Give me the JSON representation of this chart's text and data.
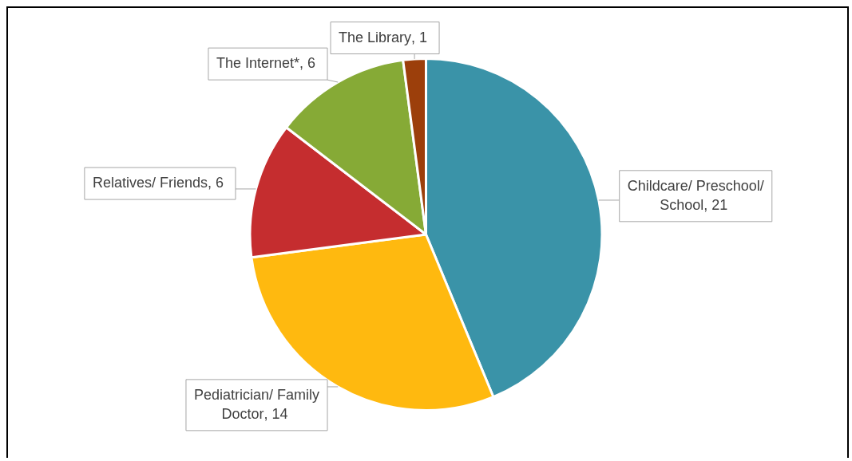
{
  "chart_data": {
    "type": "pie",
    "categories": [
      "Childcare/ Preschool/ School",
      "Pediatrician/ Family Doctor",
      "Relatives/ Friends",
      "The Internet*",
      "The Library"
    ],
    "values": [
      21,
      14,
      6,
      6,
      1
    ],
    "colors": [
      "#3a93a8",
      "#ffb90f",
      "#c52d2f",
      "#86aa36",
      "#9c3f0b"
    ],
    "value_labels": [
      ", 21",
      ", 14",
      ", 6",
      ", 6",
      ", 1"
    ],
    "legend": false
  }
}
